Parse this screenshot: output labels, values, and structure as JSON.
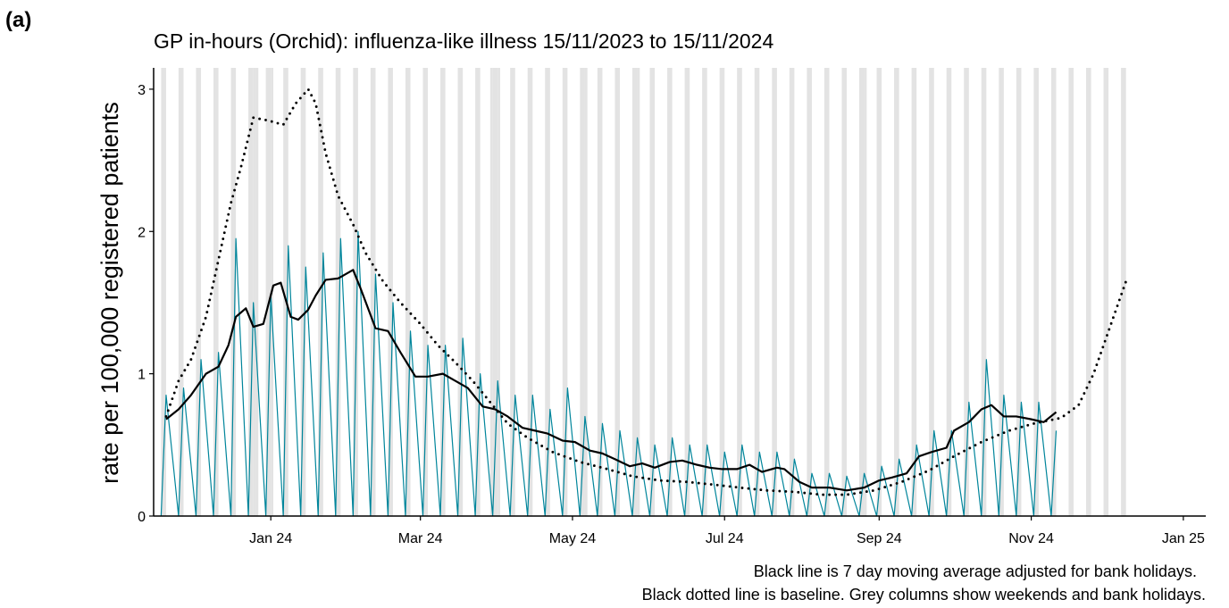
{
  "panel_label": "(a)",
  "chart_data": {
    "type": "line",
    "title": "GP in-hours (Orchid): influenza-like illness 15/11/2023 to 15/11/2024",
    "y_label": "rate per 100,000 registered patients",
    "notes": [
      "Black line is 7 day moving average adjusted for bank holidays.",
      "Black dotted line is baseline. Grey columns show weekends and bank holidays."
    ],
    "xlim": [
      0,
      422
    ],
    "xticks": [
      {
        "value": 47,
        "label": "Jan 24"
      },
      {
        "value": 107,
        "label": "Mar 24"
      },
      {
        "value": 168,
        "label": "May 24"
      },
      {
        "value": 229,
        "label": "Jul 24"
      },
      {
        "value": 291,
        "label": "Sep 24"
      },
      {
        "value": 352,
        "label": "Nov 24"
      },
      {
        "value": 413,
        "label": "Jan 25"
      }
    ],
    "ylim": [
      0,
      3.15
    ],
    "yticks": [
      0,
      1,
      2,
      3
    ],
    "shade_color": "#e3e3e3",
    "weekends": [
      3,
      10,
      17,
      24,
      31,
      38,
      45,
      52,
      59,
      66,
      73,
      80,
      87,
      94,
      101,
      108,
      115,
      122,
      129,
      136,
      143,
      150,
      157,
      164,
      171,
      178,
      185,
      192,
      199,
      206,
      213,
      220,
      227,
      234,
      241,
      248,
      255,
      262,
      269,
      276,
      283,
      290,
      297,
      304,
      311,
      318,
      325,
      332,
      339,
      346,
      353,
      360,
      367,
      374,
      381,
      388
    ],
    "bank_holidays": [
      40,
      41,
      47,
      135,
      138,
      173,
      194,
      285
    ],
    "series": [
      {
        "color": "#00859b",
        "width": 1.2,
        "dash": "solid",
        "x": [
          3,
          5,
          10,
          12,
          17,
          19,
          24,
          26,
          31,
          33,
          38,
          40,
          45,
          47,
          52,
          54,
          59,
          61,
          66,
          68,
          73,
          75,
          80,
          82,
          87,
          89,
          94,
          96,
          101,
          103,
          108,
          110,
          115,
          117,
          122,
          124,
          129,
          131,
          136,
          138,
          143,
          145,
          150,
          152,
          157,
          159,
          164,
          166,
          171,
          173,
          178,
          180,
          185,
          187,
          192,
          194,
          199,
          201,
          206,
          208,
          213,
          215,
          220,
          222,
          227,
          229,
          234,
          236,
          241,
          243,
          248,
          250,
          255,
          257,
          262,
          264,
          269,
          271,
          276,
          278,
          283,
          285,
          290,
          292,
          297,
          299,
          304,
          306,
          311,
          313,
          318,
          320,
          325,
          327,
          332,
          334,
          339,
          341,
          346,
          348,
          353,
          355,
          360,
          362
        ],
        "values": [
          0,
          0.85,
          0,
          0.9,
          0,
          1.1,
          0,
          1.15,
          0,
          1.95,
          0,
          1.5,
          0,
          1.55,
          0,
          1.9,
          0,
          1.75,
          0,
          1.85,
          0,
          1.95,
          0,
          2.0,
          0,
          1.7,
          0,
          1.5,
          0,
          1.3,
          0,
          1.2,
          0,
          1.2,
          0,
          1.25,
          0,
          1.0,
          0,
          0.95,
          0,
          0.85,
          0,
          0.85,
          0,
          0.75,
          0,
          0.9,
          0,
          0.7,
          0,
          0.65,
          0,
          0.6,
          0,
          0.55,
          0,
          0.5,
          0,
          0.55,
          0,
          0.5,
          0,
          0.5,
          0,
          0.45,
          0,
          0.5,
          0,
          0.45,
          0,
          0.45,
          0,
          0.4,
          0,
          0.3,
          0,
          0.3,
          0,
          0.28,
          0,
          0.3,
          0,
          0.35,
          0,
          0.4,
          0,
          0.5,
          0,
          0.6,
          0,
          0.6,
          0,
          0.8,
          0,
          1.1,
          0,
          0.85,
          0,
          0.8,
          0,
          0.8,
          0,
          0.6
        ]
      },
      {
        "color": "#000000",
        "width": 2.2,
        "dash": "solid",
        "x": [
          5,
          10,
          15,
          21,
          26,
          30,
          33,
          37,
          40,
          44,
          48,
          51,
          55,
          58,
          62,
          65,
          69,
          74,
          80,
          83,
          89,
          94,
          99,
          105,
          110,
          116,
          121,
          126,
          132,
          137,
          142,
          148,
          153,
          158,
          164,
          169,
          175,
          180,
          185,
          191,
          196,
          201,
          207,
          212,
          218,
          223,
          228,
          234,
          239,
          244,
          250,
          253,
          259,
          264,
          271,
          278,
          285,
          291,
          296,
          302,
          307,
          312,
          318,
          321,
          327,
          332,
          336,
          341,
          346,
          352,
          357,
          362
        ],
        "values": [
          0.68,
          0.75,
          0.85,
          1.0,
          1.05,
          1.2,
          1.4,
          1.46,
          1.33,
          1.35,
          1.62,
          1.64,
          1.4,
          1.38,
          1.45,
          1.55,
          1.66,
          1.67,
          1.73,
          1.6,
          1.32,
          1.3,
          1.15,
          0.98,
          0.98,
          1.0,
          0.95,
          0.9,
          0.77,
          0.75,
          0.7,
          0.62,
          0.6,
          0.58,
          0.53,
          0.52,
          0.46,
          0.44,
          0.4,
          0.35,
          0.37,
          0.34,
          0.38,
          0.39,
          0.36,
          0.34,
          0.33,
          0.33,
          0.36,
          0.31,
          0.34,
          0.33,
          0.24,
          0.2,
          0.2,
          0.18,
          0.2,
          0.25,
          0.27,
          0.3,
          0.42,
          0.45,
          0.48,
          0.6,
          0.66,
          0.75,
          0.78,
          0.7,
          0.7,
          0.68,
          0.66,
          0.73
        ]
      },
      {
        "color": "#000000",
        "width": 2.2,
        "dash": "dotted",
        "x": [
          5,
          10,
          15,
          21,
          26,
          31,
          35,
          40,
          46,
          52,
          57,
          62,
          65,
          69,
          74,
          80,
          85,
          92,
          99,
          107,
          114,
          121,
          128,
          135,
          142,
          150,
          160,
          171,
          182,
          192,
          203,
          214,
          225,
          235,
          246,
          257,
          268,
          278,
          289,
          300,
          311,
          321,
          332,
          343,
          353,
          364,
          371,
          377,
          382,
          387,
          390
        ],
        "values": [
          0.7,
          0.95,
          1.1,
          1.4,
          1.8,
          2.2,
          2.45,
          2.8,
          2.78,
          2.75,
          2.9,
          3.0,
          2.9,
          2.55,
          2.25,
          2.05,
          1.85,
          1.65,
          1.5,
          1.35,
          1.2,
          1.08,
          0.95,
          0.8,
          0.65,
          0.55,
          0.45,
          0.38,
          0.33,
          0.28,
          0.25,
          0.24,
          0.22,
          0.2,
          0.18,
          0.17,
          0.15,
          0.15,
          0.18,
          0.24,
          0.32,
          0.42,
          0.52,
          0.6,
          0.65,
          0.69,
          0.78,
          1.0,
          1.25,
          1.5,
          1.65
        ]
      }
    ]
  }
}
